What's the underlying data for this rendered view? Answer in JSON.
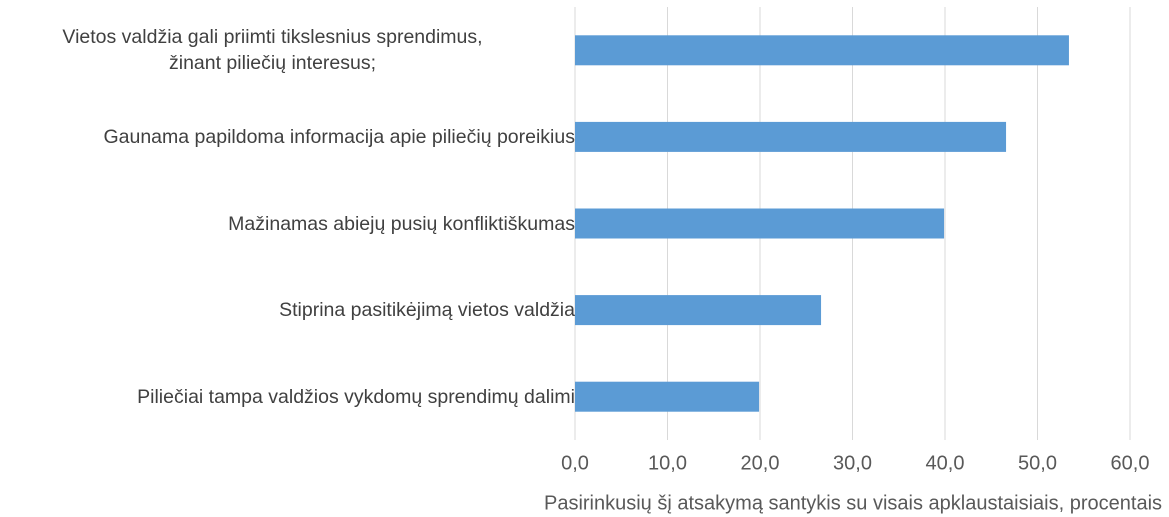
{
  "chart_data": {
    "type": "bar",
    "orientation": "horizontal",
    "categories": [
      "Vietos valdžia gali priimti tikslesnius sprendimus,\nžinant piliečių interesus;",
      "Gaunama papildoma informacija apie piliečių poreikius",
      "Mažinamas abiejų pusių konfliktiškumas",
      "Stiprina pasitikėjimą vietos valdžia",
      "Piliečiai tampa valdžios vykdomų sprendimų dalimi"
    ],
    "values": [
      53.4,
      46.6,
      39.9,
      26.6,
      19.9
    ],
    "color": "#5b9bd5",
    "xlim": [
      0,
      60
    ],
    "xticks": [
      {
        "value": 0,
        "label": "0,0"
      },
      {
        "value": 10,
        "label": "10,0"
      },
      {
        "value": 20,
        "label": "20,0"
      },
      {
        "value": 30,
        "label": "30,0"
      },
      {
        "value": 40,
        "label": "40,0"
      },
      {
        "value": 50,
        "label": "50,0"
      },
      {
        "value": 60,
        "label": "60,0"
      }
    ],
    "xlabel": "Pasirinkusių šį atsakymą santykis su visais apklaustaisiais, procentais",
    "grid": true
  }
}
